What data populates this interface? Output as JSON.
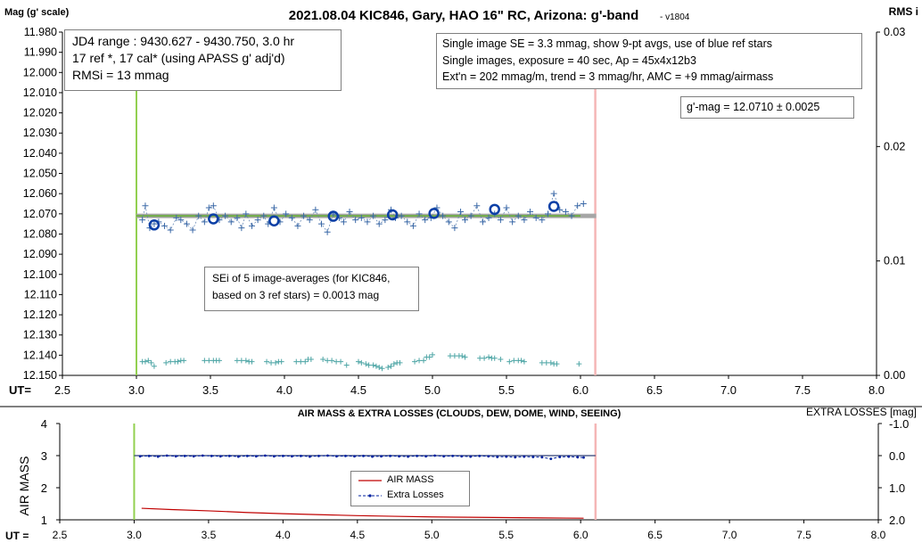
{
  "chart_data": [
    {
      "type": "scatter",
      "title": "2021.08.04 KIC846, Gary, HAO 16\" RC, Arizona: g'-band",
      "version": "- v1804",
      "ylabel": "Mag (g' scale)",
      "y2label": "RMS i",
      "xlabel": "UT=",
      "xlim": [
        2.5,
        8.0
      ],
      "ylim": [
        11.98,
        12.15
      ],
      "y_inverted": true,
      "y2lim": [
        0.0,
        0.03
      ],
      "xticks": [
        "2.5",
        "3.0",
        "3.5",
        "4.0",
        "4.5",
        "5.0",
        "5.5",
        "6.0",
        "6.5",
        "7.0",
        "7.5",
        "8.0"
      ],
      "yticks": [
        "11.980",
        "11.990",
        "12.000",
        "12.010",
        "12.020",
        "12.030",
        "12.040",
        "12.050",
        "12.060",
        "12.070",
        "12.080",
        "12.090",
        "12.100",
        "12.110",
        "12.120",
        "12.130",
        "12.140",
        "12.150"
      ],
      "y2ticks": [
        "0.03",
        "0.02",
        "0.01",
        "0.00"
      ],
      "info_left": [
        "JD4 range : 9430.627 - 9430.750,  3.0  hr",
        "17 ref *, 17 cal* (using APASS g' adj'd)",
        "RMSi = 13 mmag"
      ],
      "info_right": [
        "Single image SE = 3.3 mmag, show  9-pt avgs, use of blue ref stars",
        "Single images, exposure = 40 sec, Ap = 45x4x12b3",
        "Ext'n = 202 mmag/m, trend = 3 mmag/hr, AMC = +9 mmag/airmass"
      ],
      "result": "g'-mag = 12.0710 ± 0.0025",
      "sei_note": [
        "SEi of 5 image-averages (for KIC846,",
        "based on 3 ref stars) = 0.0013 mag"
      ],
      "start_line_x": 3.0,
      "end_line_x": 6.1,
      "mean_mag": 12.071,
      "series": [
        {
          "role": "single-images",
          "x": [
            3.04,
            3.06,
            3.09,
            3.12,
            3.15,
            3.19,
            3.23,
            3.27,
            3.3,
            3.34,
            3.38,
            3.42,
            3.46,
            3.49,
            3.52,
            3.56,
            3.6,
            3.64,
            3.68,
            3.71,
            3.74,
            3.78,
            3.82,
            3.86,
            3.89,
            3.93,
            3.97,
            4.01,
            4.05,
            4.09,
            4.13,
            4.17,
            4.21,
            4.25,
            4.29,
            4.33,
            4.37,
            4.4,
            4.44,
            4.48,
            4.52,
            4.56,
            4.6,
            4.64,
            4.68,
            4.72,
            4.75,
            4.79,
            4.83,
            4.87,
            4.91,
            4.95,
            4.99,
            5.03,
            5.07,
            5.11,
            5.15,
            5.19,
            5.22,
            5.26,
            5.3,
            5.34,
            5.38,
            5.42,
            5.46,
            5.5,
            5.54,
            5.58,
            5.62,
            5.66,
            5.7,
            5.74,
            5.78,
            5.82,
            5.86,
            5.9,
            5.94,
            5.98,
            6.02
          ],
          "y": [
            12.073,
            12.066,
            12.077,
            12.075,
            12.074,
            12.076,
            12.078,
            12.072,
            12.073,
            12.075,
            12.078,
            12.071,
            12.074,
            12.067,
            12.066,
            12.073,
            12.071,
            12.074,
            12.072,
            12.077,
            12.07,
            12.076,
            12.073,
            12.071,
            12.075,
            12.067,
            12.074,
            12.07,
            12.072,
            12.076,
            12.071,
            12.073,
            12.068,
            12.075,
            12.079,
            12.07,
            12.072,
            12.074,
            12.069,
            12.073,
            12.072,
            12.074,
            12.071,
            12.075,
            12.073,
            12.068,
            12.072,
            12.071,
            12.074,
            12.076,
            12.07,
            12.073,
            12.072,
            12.067,
            12.071,
            12.074,
            12.077,
            12.069,
            12.073,
            12.071,
            12.066,
            12.074,
            12.072,
            12.07,
            12.073,
            12.067,
            12.074,
            12.071,
            12.073,
            12.069,
            12.072,
            12.073,
            12.07,
            12.06,
            12.068,
            12.069,
            12.071,
            12.066,
            12.065
          ]
        },
        {
          "role": "averages",
          "x": [
            3.12,
            3.52,
            3.93,
            4.33,
            4.73,
            5.01,
            5.42,
            5.82
          ],
          "y": [
            12.0755,
            12.0725,
            12.0735,
            12.0712,
            12.0705,
            12.0698,
            12.0678,
            12.0663
          ]
        },
        {
          "role": "rms-i",
          "axis": "y2",
          "x": [
            3.04,
            3.06,
            3.08,
            3.1,
            3.12,
            3.2,
            3.23,
            3.26,
            3.28,
            3.3,
            3.32,
            3.46,
            3.49,
            3.52,
            3.54,
            3.56,
            3.68,
            3.71,
            3.74,
            3.76,
            3.78,
            3.88,
            3.91,
            3.94,
            3.96,
            3.98,
            4.08,
            4.11,
            4.14,
            4.16,
            4.18,
            4.26,
            4.29,
            4.32,
            4.35,
            4.38,
            4.42,
            4.5,
            4.52,
            4.55,
            4.57,
            4.6,
            4.62,
            4.64,
            4.66,
            4.7,
            4.72,
            4.74,
            4.76,
            4.78,
            4.88,
            4.91,
            4.94,
            4.96,
            4.98,
            5.0,
            5.12,
            5.15,
            5.18,
            5.2,
            5.22,
            5.32,
            5.35,
            5.38,
            5.4,
            5.42,
            5.46,
            5.52,
            5.55,
            5.58,
            5.6,
            5.62,
            5.74,
            5.77,
            5.8,
            5.82,
            5.84,
            5.99
          ],
          "y": [
            0.0012,
            0.0012,
            0.0013,
            0.0011,
            0.0008,
            0.0011,
            0.0012,
            0.0012,
            0.0012,
            0.0013,
            0.0013,
            0.0013,
            0.0013,
            0.0013,
            0.0013,
            0.0013,
            0.0013,
            0.0013,
            0.0013,
            0.0012,
            0.0012,
            0.0012,
            0.0011,
            0.0011,
            0.0012,
            0.0012,
            0.0012,
            0.0012,
            0.0012,
            0.0014,
            0.0014,
            0.0014,
            0.0013,
            0.0013,
            0.0012,
            0.0012,
            0.0009,
            0.0012,
            0.0011,
            0.001,
            0.0009,
            0.0009,
            0.0008,
            0.0007,
            0.0006,
            0.0007,
            0.0008,
            0.001,
            0.0011,
            0.0011,
            0.0012,
            0.0013,
            0.0013,
            0.0016,
            0.0016,
            0.0018,
            0.0017,
            0.0017,
            0.0017,
            0.0017,
            0.0016,
            0.0015,
            0.0015,
            0.0016,
            0.0015,
            0.0015,
            0.0014,
            0.0012,
            0.0013,
            0.0013,
            0.0013,
            0.0012,
            0.0011,
            0.0011,
            0.0011,
            0.001,
            0.001,
            0.001
          ]
        }
      ]
    },
    {
      "type": "line",
      "title": "AIR MASS & EXTRA LOSSES (CLOUDS, DEW, DOME, WIND, SEEING)",
      "ylabel": "AIR MASS",
      "y2label": "EXTRA LOSSES [mag]",
      "xlabel": "UT =",
      "xlim": [
        2.5,
        8.0
      ],
      "ylim": [
        1,
        4
      ],
      "y2lim": [
        -1.0,
        2.0
      ],
      "y2_inverted": true,
      "xticks": [
        "2.5",
        "3.0",
        "3.5",
        "4.0",
        "4.5",
        "5.0",
        "5.5",
        "6.0",
        "6.5",
        "7.0",
        "7.5",
        "8.0"
      ],
      "yticks": [
        "1",
        "2",
        "3",
        "4"
      ],
      "y2ticks": [
        "-1.0",
        "0.0",
        "1.0",
        "2.0"
      ],
      "start_line_x": 3.0,
      "end_line_x": 6.1,
      "series": [
        {
          "name": "AIR MASS",
          "x": [
            3.05,
            3.25,
            3.5,
            3.75,
            4.0,
            4.25,
            4.5,
            4.75,
            5.0,
            5.25,
            5.5,
            5.75,
            6.02
          ],
          "y": [
            1.36,
            1.32,
            1.28,
            1.23,
            1.19,
            1.16,
            1.13,
            1.11,
            1.09,
            1.08,
            1.07,
            1.06,
            1.05
          ]
        },
        {
          "name": "Extra Losses",
          "x": [
            3.04,
            3.1,
            3.16,
            3.22,
            3.28,
            3.34,
            3.4,
            3.46,
            3.52,
            3.58,
            3.64,
            3.7,
            3.76,
            3.82,
            3.88,
            3.94,
            4.0,
            4.06,
            4.12,
            4.18,
            4.24,
            4.3,
            4.36,
            4.42,
            4.48,
            4.54,
            4.6,
            4.66,
            4.72,
            4.78,
            4.84,
            4.9,
            4.96,
            5.02,
            5.08,
            5.14,
            5.2,
            5.26,
            5.32,
            5.38,
            5.44,
            5.5,
            5.56,
            5.62,
            5.68,
            5.74,
            5.8,
            5.86,
            5.92,
            5.98,
            6.02
          ],
          "y": [
            0.02,
            0.01,
            0.03,
            0.0,
            0.02,
            0.01,
            0.02,
            0.0,
            0.01,
            0.02,
            0.01,
            0.03,
            0.01,
            0.02,
            0.0,
            0.02,
            0.01,
            0.02,
            0.01,
            0.03,
            0.01,
            0.0,
            0.02,
            0.01,
            0.02,
            0.01,
            0.03,
            0.02,
            0.01,
            0.02,
            0.03,
            0.01,
            0.02,
            0.0,
            0.02,
            0.01,
            0.02,
            0.03,
            0.01,
            0.02,
            0.04,
            0.03,
            0.05,
            0.03,
            0.04,
            0.05,
            0.1,
            0.04,
            0.03,
            0.05,
            0.06
          ]
        }
      ]
    }
  ]
}
